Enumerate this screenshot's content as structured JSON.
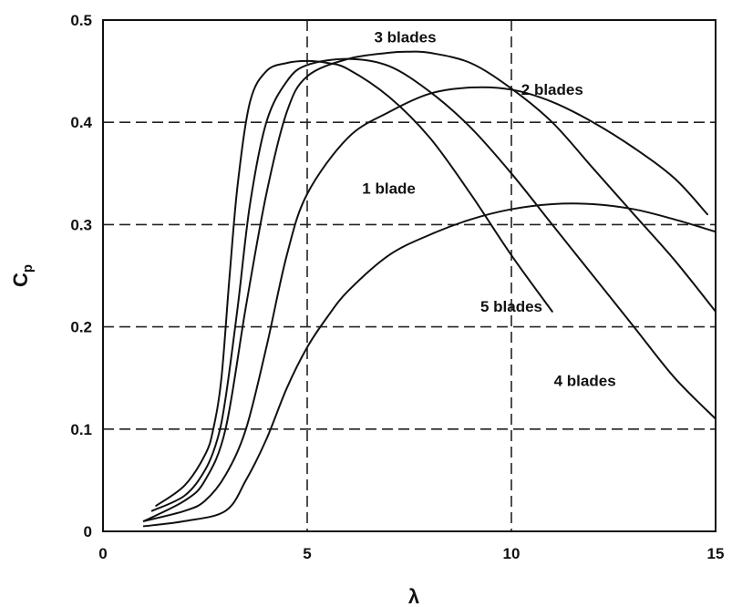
{
  "chart_data": {
    "type": "line",
    "title": "",
    "xlabel": "λ",
    "ylabel": "C",
    "ylabel_sub": "p",
    "xlim": [
      0,
      15
    ],
    "ylim": [
      0,
      0.5
    ],
    "xticks": [
      0,
      5,
      10,
      15
    ],
    "yticks": [
      0,
      0.1,
      0.2,
      0.3,
      0.4,
      0.5
    ],
    "xtick_labels": [
      "0",
      "5",
      "10",
      "15"
    ],
    "ytick_labels": [
      "0",
      "0.1",
      "0.2",
      "0.3",
      "0.4",
      "0.5"
    ],
    "grid": "dashed",
    "series": [
      {
        "name": "1 blade",
        "x": [
          1.0,
          2.0,
          3.0,
          3.5,
          4.0,
          4.5,
          5.0,
          5.5,
          6.0,
          7.0,
          8.0,
          9.0,
          10.0,
          11.0,
          12.0,
          13.0,
          14.0,
          15.0
        ],
        "y": [
          0.005,
          0.01,
          0.02,
          0.05,
          0.09,
          0.14,
          0.18,
          0.21,
          0.235,
          0.27,
          0.29,
          0.305,
          0.315,
          0.32,
          0.32,
          0.315,
          0.305,
          0.293
        ]
      },
      {
        "name": "2 blades",
        "x": [
          1.0,
          2.0,
          2.5,
          3.0,
          3.5,
          4.0,
          4.5,
          5.0,
          6.0,
          7.0,
          8.0,
          9.0,
          10.0,
          11.0,
          12.0,
          13.0,
          14.0,
          14.8
        ],
        "y": [
          0.01,
          0.02,
          0.03,
          0.055,
          0.1,
          0.18,
          0.27,
          0.33,
          0.385,
          0.41,
          0.428,
          0.434,
          0.432,
          0.42,
          0.4,
          0.375,
          0.345,
          0.31
        ]
      },
      {
        "name": "3 blades",
        "x": [
          1.0,
          2.0,
          2.5,
          3.0,
          3.5,
          4.0,
          4.5,
          5.0,
          6.0,
          7.0,
          7.5,
          8.0,
          9.0,
          10.0,
          11.0,
          12.0,
          13.0,
          14.0,
          15.0
        ],
        "y": [
          0.01,
          0.03,
          0.05,
          0.1,
          0.22,
          0.33,
          0.41,
          0.445,
          0.462,
          0.468,
          0.469,
          0.468,
          0.458,
          0.433,
          0.4,
          0.355,
          0.31,
          0.265,
          0.215
        ]
      },
      {
        "name": "4 blades",
        "x": [
          1.2,
          2.0,
          2.5,
          2.8,
          3.0,
          3.3,
          3.6,
          4.0,
          4.5,
          5.0,
          6.0,
          7.0,
          8.0,
          9.0,
          10.0,
          11.0,
          12.0,
          13.0,
          14.0,
          15.0
        ],
        "y": [
          0.02,
          0.035,
          0.06,
          0.09,
          0.13,
          0.22,
          0.32,
          0.4,
          0.44,
          0.456,
          0.462,
          0.455,
          0.43,
          0.395,
          0.35,
          0.3,
          0.25,
          0.2,
          0.15,
          0.11
        ]
      },
      {
        "name": "5 blades",
        "x": [
          1.3,
          2.0,
          2.5,
          2.7,
          2.9,
          3.1,
          3.3,
          3.6,
          4.0,
          4.5,
          5.0,
          5.5,
          6.0,
          7.0,
          8.0,
          9.0,
          10.0,
          11.0
        ],
        "y": [
          0.025,
          0.045,
          0.075,
          0.1,
          0.15,
          0.25,
          0.34,
          0.42,
          0.45,
          0.458,
          0.46,
          0.458,
          0.452,
          0.425,
          0.385,
          0.33,
          0.27,
          0.215
        ]
      }
    ],
    "annotations": [
      {
        "text": "3 blades",
        "x": 7.4,
        "y": 0.478
      },
      {
        "text": "2 blades",
        "x": 11.0,
        "y": 0.427
      },
      {
        "text": "1 blade",
        "x": 7.0,
        "y": 0.33
      },
      {
        "text": "5 blades",
        "x": 10.0,
        "y": 0.215
      },
      {
        "text": "4 blades",
        "x": 11.8,
        "y": 0.142
      }
    ]
  }
}
